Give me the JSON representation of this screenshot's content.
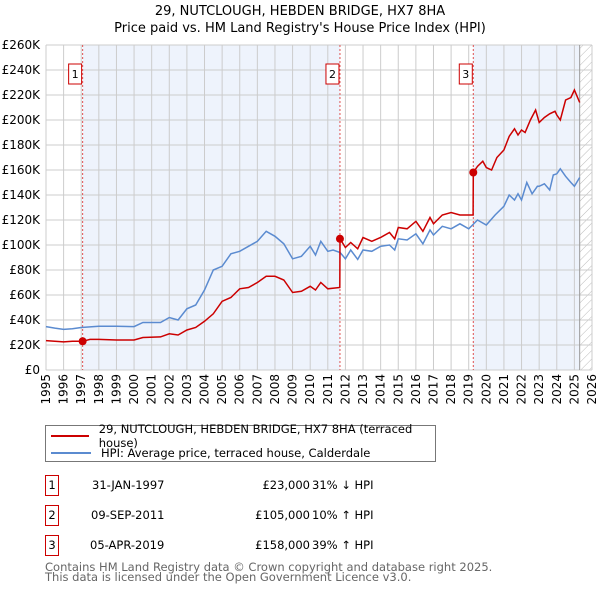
{
  "chart_data": {
    "type": "line",
    "title": "29, NUTCLOUGH, HEBDEN BRIDGE, HX7 8HA",
    "subtitle": "Price paid vs. HM Land Registry's House Price Index (HPI)",
    "xlim": [
      1995,
      2026
    ],
    "ylim": [
      0,
      260000
    ],
    "x_ticks": [
      "1995",
      "1996",
      "1997",
      "1998",
      "1999",
      "2000",
      "2001",
      "2002",
      "2003",
      "2004",
      "2005",
      "2006",
      "2007",
      "2008",
      "2009",
      "2010",
      "2011",
      "2012",
      "2013",
      "2014",
      "2015",
      "2016",
      "2017",
      "2018",
      "2019",
      "2020",
      "2021",
      "2022",
      "2023",
      "2024",
      "2025",
      "2026"
    ],
    "y_ticks": [
      {
        "v": 0,
        "label": "£0"
      },
      {
        "v": 20000,
        "label": "£20K"
      },
      {
        "v": 40000,
        "label": "£40K"
      },
      {
        "v": 60000,
        "label": "£60K"
      },
      {
        "v": 80000,
        "label": "£80K"
      },
      {
        "v": 100000,
        "label": "£100K"
      },
      {
        "v": 120000,
        "label": "£120K"
      },
      {
        "v": 140000,
        "label": "£140K"
      },
      {
        "v": 160000,
        "label": "£160K"
      },
      {
        "v": 180000,
        "label": "£180K"
      },
      {
        "v": 200000,
        "label": "£200K"
      },
      {
        "v": 220000,
        "label": "£220K"
      },
      {
        "v": 240000,
        "label": "£240K"
      },
      {
        "v": 260000,
        "label": "£260K"
      }
    ],
    "grid": true,
    "shaded_ranges": [
      [
        1997.08,
        2011.69
      ],
      [
        2019.26,
        2025.3
      ]
    ],
    "hatched_from": 2025.3,
    "series": [
      {
        "name": "29, NUTCLOUGH, HEBDEN BRIDGE, HX7 8HA (terraced house)",
        "color": "#cc0000",
        "x": [
          1995,
          1995.5,
          1996,
          1996.5,
          1997.08,
          1997.5,
          1998,
          1999,
          2000,
          2000.5,
          2001.5,
          2002,
          2002.5,
          2003,
          2003.5,
          2004,
          2004.5,
          2005,
          2005.5,
          2006,
          2006.5,
          2007,
          2007.5,
          2008,
          2008.5,
          2009,
          2009.5,
          2010,
          2010.3,
          2010.6,
          2011,
          2011.68,
          2011.69,
          2012,
          2012.3,
          2012.7,
          2013,
          2013.5,
          2014,
          2014.5,
          2014.8,
          2015,
          2015.5,
          2016,
          2016.4,
          2016.8,
          2017,
          2017.5,
          2018,
          2018.5,
          2019.25,
          2019.26,
          2019.5,
          2019.8,
          2020,
          2020.3,
          2020.6,
          2021,
          2021.3,
          2021.6,
          2021.8,
          2022,
          2022.2,
          2022.5,
          2022.8,
          2023,
          2023.3,
          2023.6,
          2023.9,
          2024,
          2024.2,
          2024.5,
          2024.8,
          2025,
          2025.3
        ],
        "y": [
          23500,
          23000,
          22500,
          23000,
          23000,
          24500,
          24500,
          24000,
          24000,
          26000,
          26500,
          29000,
          28000,
          32000,
          34000,
          39000,
          45000,
          55000,
          58000,
          65000,
          66000,
          70000,
          75000,
          75000,
          72000,
          62000,
          63000,
          67000,
          64000,
          70000,
          65000,
          66000,
          105000,
          98000,
          102000,
          97000,
          106000,
          103000,
          106000,
          110000,
          105000,
          114000,
          113000,
          119000,
          111000,
          122000,
          117000,
          124000,
          126000,
          124000,
          124000,
          158000,
          163000,
          167000,
          162000,
          160000,
          170000,
          176000,
          187000,
          193000,
          188000,
          192000,
          190000,
          200000,
          208000,
          198000,
          202000,
          205000,
          207000,
          204000,
          200000,
          216000,
          218000,
          224000,
          214000
        ]
      },
      {
        "name": "HPI: Average price, terraced house, Calderdale",
        "color": "#5b8bd0",
        "x": [
          1995,
          1995.5,
          1996,
          1996.5,
          1997,
          1998,
          1999,
          2000,
          2000.5,
          2001.5,
          2002,
          2002.5,
          2003,
          2003.5,
          2004,
          2004.5,
          2005,
          2005.5,
          2006,
          2006.5,
          2007,
          2007.5,
          2008,
          2008.5,
          2009,
          2009.5,
          2010,
          2010.3,
          2010.6,
          2011,
          2011.3,
          2011.7,
          2012,
          2012.3,
          2012.7,
          2013,
          2013.5,
          2014,
          2014.5,
          2014.8,
          2015,
          2015.5,
          2016,
          2016.4,
          2016.8,
          2017,
          2017.5,
          2018,
          2018.5,
          2019,
          2019.5,
          2020,
          2020.5,
          2021,
          2021.3,
          2021.6,
          2021.8,
          2022,
          2022.3,
          2022.6,
          2022.9,
          2023,
          2023.3,
          2023.6,
          2023.8,
          2024,
          2024.2,
          2024.5,
          2024.8,
          2025,
          2025.3
        ],
        "y": [
          34700,
          33500,
          32500,
          33000,
          34000,
          35000,
          35000,
          34700,
          38000,
          38000,
          42000,
          40000,
          49000,
          52000,
          64000,
          80000,
          83000,
          93000,
          95000,
          99000,
          103000,
          111000,
          107000,
          101000,
          89000,
          91000,
          99000,
          92000,
          103000,
          95000,
          96000,
          94000,
          89000,
          96000,
          88500,
          96000,
          95000,
          99000,
          100000,
          96000,
          105000,
          104000,
          109000,
          101000,
          112000,
          108000,
          115000,
          113000,
          117000,
          113000,
          120000,
          116000,
          124000,
          131000,
          140000,
          136000,
          141000,
          136000,
          150000,
          141000,
          147000,
          147000,
          149000,
          144000,
          156000,
          157000,
          161000,
          155000,
          150000,
          147000,
          154000
        ]
      }
    ],
    "sales": [
      {
        "label": "1",
        "x": 1997.08,
        "y": 23000
      },
      {
        "label": "2",
        "x": 2011.69,
        "y": 105000
      },
      {
        "label": "3",
        "x": 2019.26,
        "y": 158000
      }
    ]
  },
  "title": "29, NUTCLOUGH, HEBDEN BRIDGE, HX7 8HA",
  "subtitle": "Price paid vs. HM Land Registry's House Price Index (HPI)",
  "legend": {
    "property": "29, NUTCLOUGH, HEBDEN BRIDGE, HX7 8HA (terraced house)",
    "hpi": "HPI: Average price, terraced house, Calderdale"
  },
  "transactions": [
    {
      "num": "1",
      "date": "31-JAN-1997",
      "price": "£23,000",
      "hpi": "31% ↓ HPI"
    },
    {
      "num": "2",
      "date": "09-SEP-2011",
      "price": "£105,000",
      "hpi": "10% ↑ HPI"
    },
    {
      "num": "3",
      "date": "05-APR-2019",
      "price": "£158,000",
      "hpi": "39% ↑ HPI"
    }
  ],
  "footer": {
    "line1": "Contains HM Land Registry data © Crown copyright and database right 2025.",
    "line2": "This data is licensed under the Open Government Licence v3.0."
  },
  "colors": {
    "property": "#cc0000",
    "hpi": "#5b8bd0",
    "shade": "#eef3fc"
  }
}
